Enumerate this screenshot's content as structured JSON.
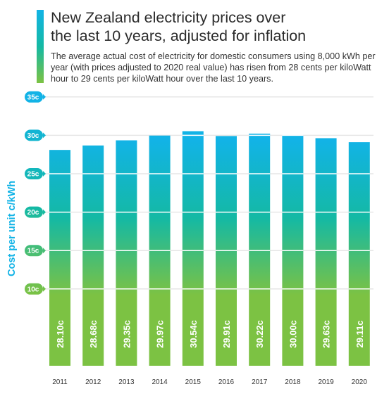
{
  "header": {
    "title_line1": "New Zealand electricity prices over",
    "title_line2": "the last 10 years, adjusted for inflation",
    "subtitle": "The average actual cost of electricity for domestic consumers using 8,000 kWh per year (with prices adjusted to 2020 real value) has risen from 28 cents per kiloWatt hour to 29 cents per kiloWatt hour over the last 10 years."
  },
  "colors": {
    "accent_blue": "#12b3e6",
    "teal": "#14b9a4",
    "green": "#7cc243",
    "gridline": "#e6e6e6"
  },
  "chart_data": {
    "type": "bar",
    "title": "New Zealand electricity prices over the last 10 years, adjusted for inflation",
    "ylabel": "Cost per unit c/kWh",
    "xlabel": "",
    "categories": [
      "2011",
      "2012",
      "2013",
      "2014",
      "2015",
      "2016",
      "2017",
      "2018",
      "2019",
      "2020"
    ],
    "values": [
      28.1,
      28.68,
      29.35,
      29.97,
      30.54,
      29.91,
      30.22,
      30.0,
      29.63,
      29.11
    ],
    "value_labels": [
      "28.10c",
      "28.68c",
      "29.35c",
      "29.97c",
      "30.54c",
      "29.91c",
      "30.22c",
      "30.00c",
      "29.63c",
      "29.11c"
    ],
    "yticks": [
      10,
      15,
      20,
      25,
      30,
      35
    ],
    "ytick_labels": [
      "10c",
      "15c",
      "20c",
      "25c",
      "30c",
      "35c"
    ],
    "ylim": [
      0,
      35
    ],
    "grid": true,
    "legend": "none"
  }
}
